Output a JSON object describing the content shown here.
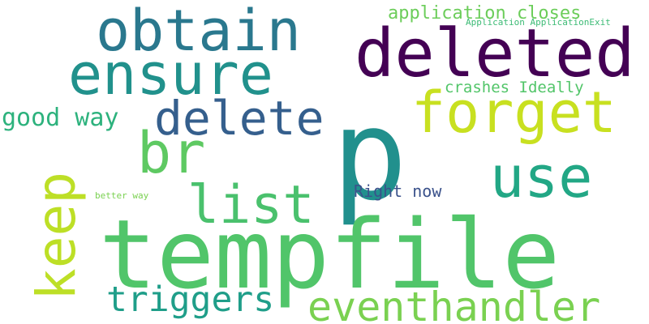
{
  "words": [
    {
      "text": "p",
      "color": "#21908d"
    },
    {
      "text": "tempfile",
      "color": "#51c56a"
    },
    {
      "text": "deleted",
      "color": "#440154"
    },
    {
      "text": "forget",
      "color": "#c8e020"
    },
    {
      "text": "obtain",
      "color": "#2a788e"
    },
    {
      "text": "ensure",
      "color": "#21918c"
    },
    {
      "text": "use",
      "color": "#22a785"
    },
    {
      "text": "delete",
      "color": "#355f8d"
    },
    {
      "text": "br",
      "color": "#5ec962"
    },
    {
      "text": "keep",
      "color": "#bddf26"
    },
    {
      "text": "list",
      "color": "#4ac16d"
    },
    {
      "text": "eventhandler",
      "color": "#7ad151"
    },
    {
      "text": "triggers",
      "color": "#1f9e89"
    },
    {
      "text": "good way",
      "color": "#2db27d"
    },
    {
      "text": "application closes",
      "color": "#6ccd5a"
    },
    {
      "text": "crashes Ideally",
      "color": "#52c569"
    },
    {
      "text": "Right now",
      "color": "#3b528b"
    },
    {
      "text": "Application ApplicationExit",
      "color": "#3cbb75"
    },
    {
      "text": "better way",
      "color": "#7ad151"
    }
  ]
}
